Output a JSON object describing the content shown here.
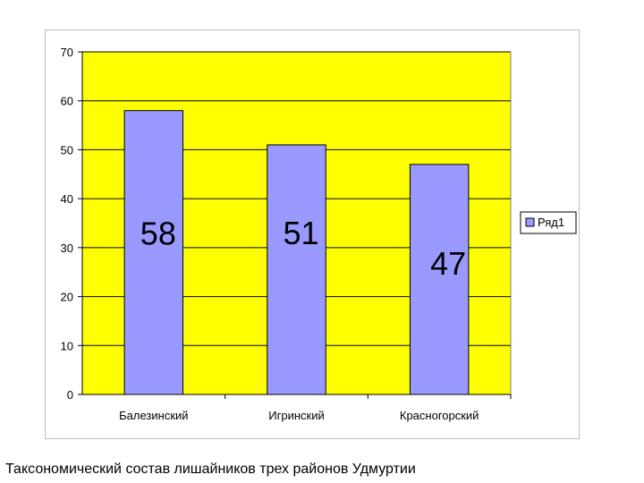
{
  "caption": "Таксономический состав лишайников трех районов Удмуртии",
  "chart_data": {
    "type": "bar",
    "title": "",
    "xlabel": "",
    "ylabel": "",
    "categories": [
      "Балезинский",
      "Игринский",
      "Красногорский"
    ],
    "series": [
      {
        "name": "Ряд1",
        "values": [
          58,
          51,
          47
        ],
        "color": "#9999ff"
      }
    ],
    "data_labels": [
      "58",
      "51",
      "47"
    ],
    "ylim": [
      0,
      70
    ],
    "yticks": [
      "0",
      "10",
      "20",
      "30",
      "40",
      "50",
      "60",
      "70"
    ],
    "grid": true,
    "legend": "right",
    "plot_background": "#ffff00",
    "gridline_color": "#000000"
  }
}
